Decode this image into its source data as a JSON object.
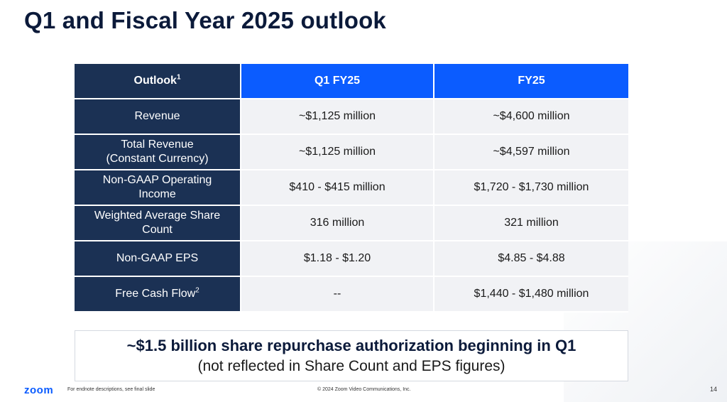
{
  "title": "Q1 and Fiscal Year 2025 outlook",
  "table": {
    "headers": {
      "label": "Outlook",
      "label_sup": "1",
      "q1": "Q1 FY25",
      "fy": "FY25"
    },
    "rows": [
      {
        "label": "Revenue",
        "q1": "~$1,125 million",
        "fy": "~$4,600 million"
      },
      {
        "label": "Total Revenue",
        "label2": "(Constant Currency)",
        "q1": "~$1,125 million",
        "fy": "~$4,597 million"
      },
      {
        "label": "Non-GAAP Operating",
        "label2": "Income",
        "q1": "$410 - $415 million",
        "fy": "$1,720 - $1,730 million"
      },
      {
        "label": "Weighted Average Share",
        "label2": "Count",
        "q1": "316 million",
        "fy": "321 million"
      },
      {
        "label": "Non-GAAP EPS",
        "q1": "$1.18 - $1.20",
        "fy": "$4.85 - $4.88"
      },
      {
        "label": "Free Cash Flow",
        "label_sup": "2",
        "q1": "--",
        "fy": "$1,440 - $1,480 million"
      }
    ]
  },
  "callout": {
    "line1": "~$1.5 billion share repurchase authorization beginning in Q1",
    "line2": "(not reflected in Share Count and EPS figures)"
  },
  "footer": {
    "logo": "zoom",
    "note": "For endnote descriptions, see final slide",
    "copyright": "© 2024 Zoom Video Communications, Inc.",
    "page": "14"
  },
  "colors": {
    "navy": "#1b3154",
    "blue": "#0b5cff",
    "cell": "#f1f2f5"
  }
}
